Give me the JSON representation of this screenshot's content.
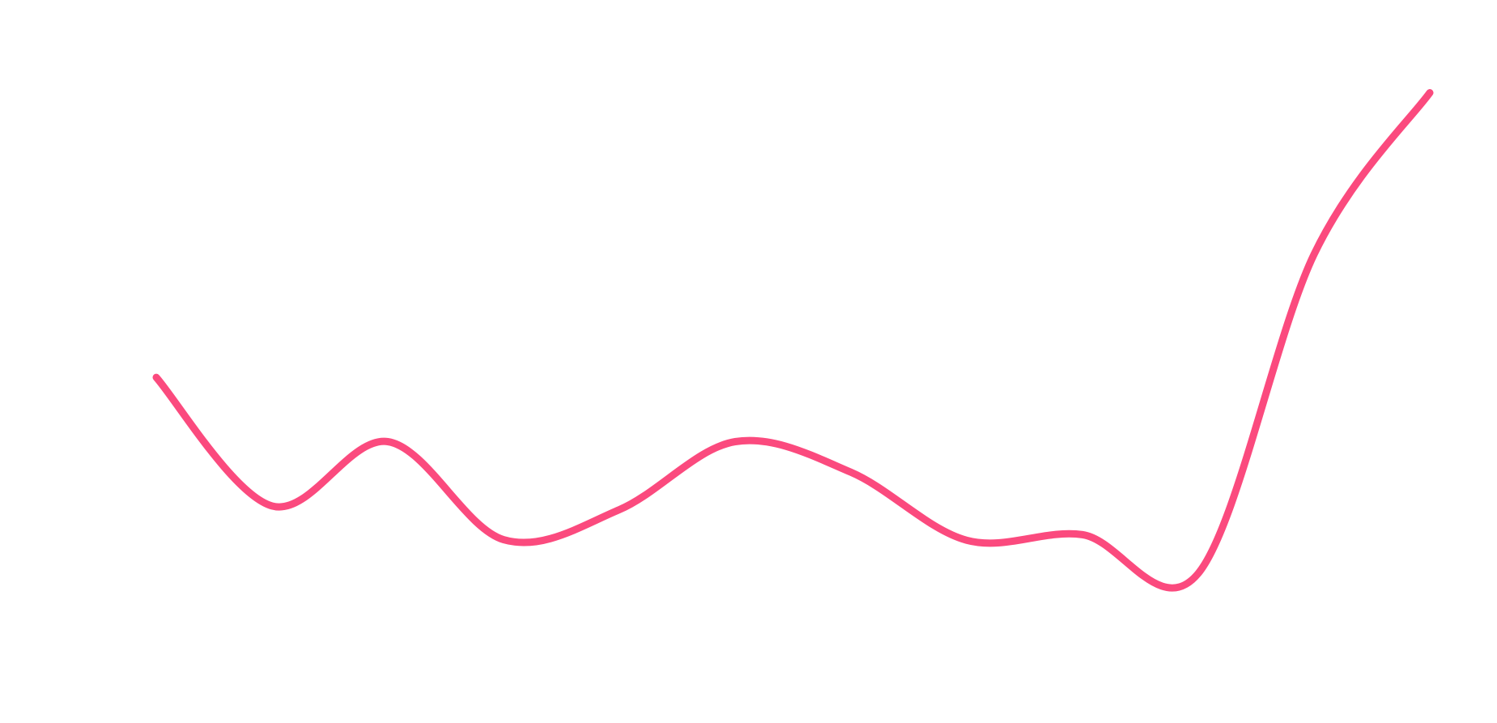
{
  "chart_data": {
    "type": "line",
    "categories": [
      null,
      null,
      null,
      null,
      null,
      null,
      null,
      null,
      null,
      null,
      null,
      null
    ],
    "series": [
      {
        "color": "#fb4a7e",
        "values": [
          47.2,
          26.6,
          36.9,
          21.2,
          26,
          36.9,
          32,
          21.1,
          22,
          15.8,
          66.9,
          92.8
        ]
      }
    ],
    "ylim": [
      0,
      100
    ]
  }
}
